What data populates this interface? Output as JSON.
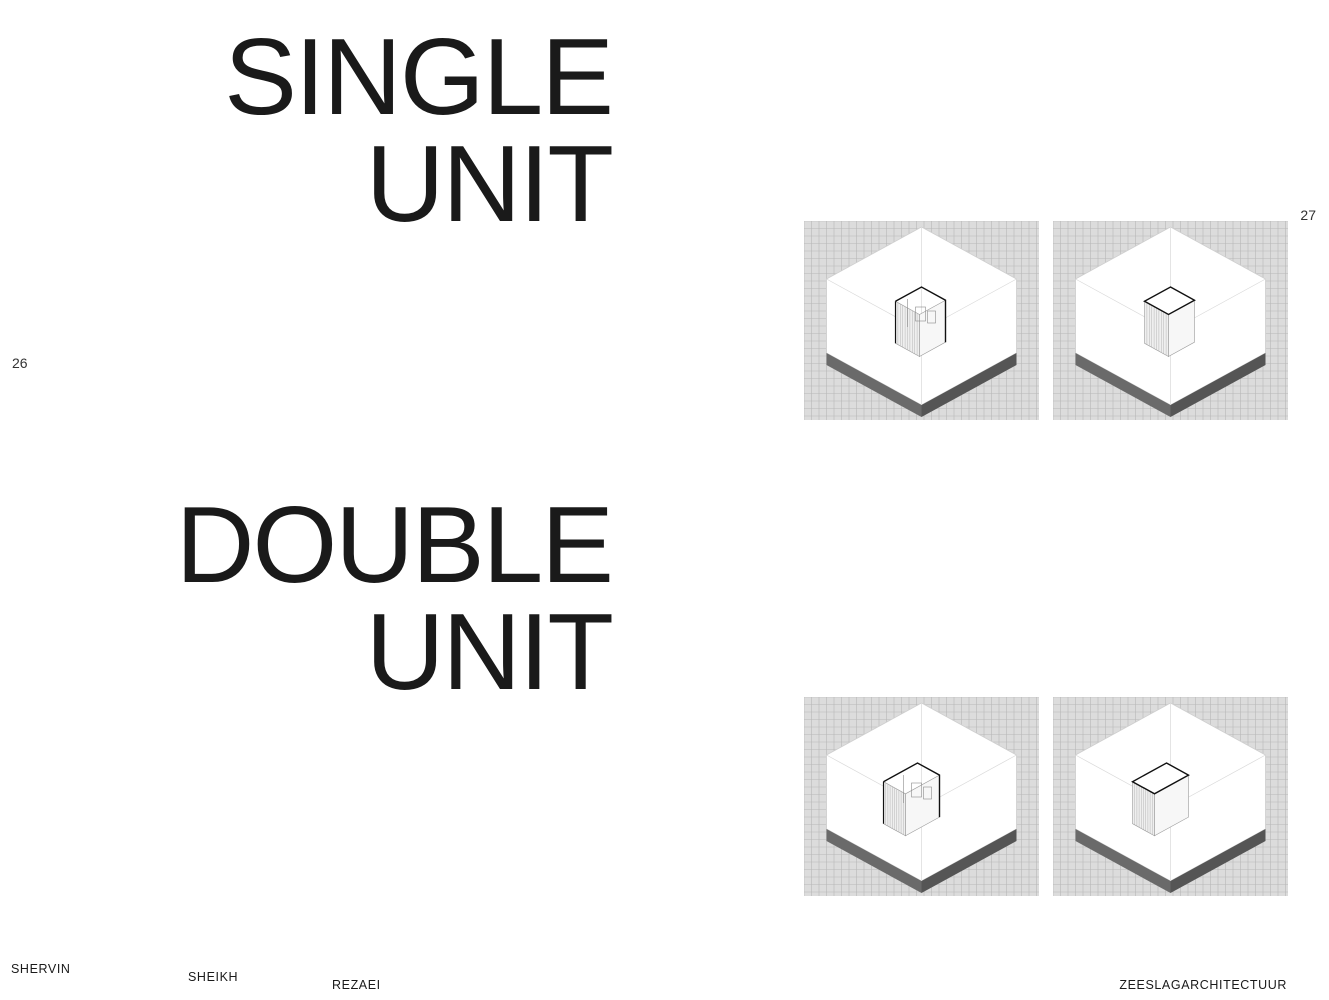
{
  "headings": {
    "single": {
      "line1": "SINGLE",
      "line2": "UNIT"
    },
    "double": {
      "line1": "DOUBLE",
      "line2": "UNIT"
    }
  },
  "page_numbers": {
    "left": "26",
    "right": "27"
  },
  "footer": {
    "first_name": "SHERVIN",
    "middle_name": "SHEIKH",
    "last_name": "REZAEI",
    "studio": "ZEESLAGARCHITECTUUR"
  },
  "drawings": [
    {
      "unit": "single",
      "view": "open-front"
    },
    {
      "unit": "single",
      "view": "roof"
    },
    {
      "unit": "double",
      "view": "open-front"
    },
    {
      "unit": "double",
      "view": "roof"
    }
  ],
  "colors": {
    "text": "#1a1a1a",
    "grid_background": "#dcdcdc",
    "grid_lines": "#b8b8b8",
    "ground_edge": "#5a5a5a"
  }
}
